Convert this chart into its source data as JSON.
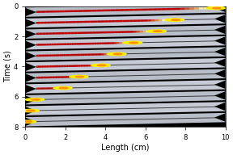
{
  "xlabel": "Length (cm)",
  "ylabel": "Time (s)",
  "xlim": [
    0,
    10
  ],
  "ylim": [
    0,
    8
  ],
  "x_ticks": [
    0,
    2,
    4,
    6,
    8,
    10
  ],
  "y_ticks": [
    0,
    2,
    4,
    6,
    8
  ],
  "n_strips": 11,
  "strip_bg": "#b8bec8",
  "strip_bg2": "#c5cad4",
  "wire_color": "#1a1a1a",
  "red_color": "#cc1111",
  "yellow_color": "#ffee00",
  "orange_color": "#ff8800",
  "white_glow": "#ffffff",
  "label_fontsize": 7,
  "tick_fontsize": 6,
  "skew_x": 1.5,
  "flame_data": [
    [
      0,
      9.6
    ],
    [
      1,
      7.55
    ],
    [
      2,
      6.65
    ],
    [
      3,
      5.45
    ],
    [
      4,
      4.65
    ],
    [
      5,
      3.85
    ],
    [
      6,
      2.75
    ],
    [
      7,
      1.95
    ],
    [
      8,
      0.55
    ],
    [
      9,
      0.3
    ],
    [
      10,
      0.15
    ]
  ]
}
